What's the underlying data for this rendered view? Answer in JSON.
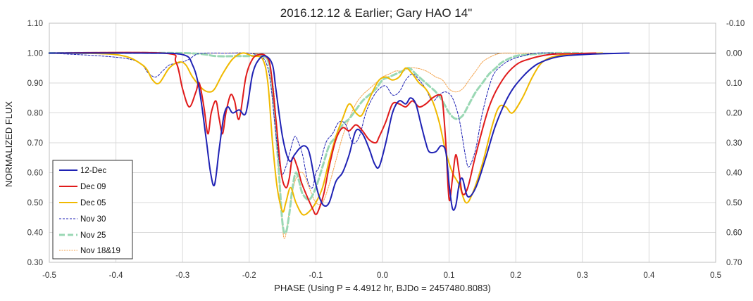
{
  "chart_data": {
    "type": "line",
    "title": "2016.12.12 & Earlier; Gary HAO 14\"",
    "xlabel": "PHASE (Using P = 4.4912 hr, BJDo = 2457480.8083)",
    "ylabel": "NORMALIZED FLUX",
    "xlim": [
      -0.5,
      0.5
    ],
    "ylim": [
      0.3,
      1.1
    ],
    "y2lim": [
      -0.1,
      0.7
    ],
    "y2_reversed": true,
    "grid": true,
    "legend_position": "bottom-left",
    "x_ticks": [
      "-0.5",
      "-0.4",
      "-0.3",
      "-0.2",
      "-0.1",
      "0.0",
      "0.1",
      "0.2",
      "0.3",
      "0.4",
      "0.5"
    ],
    "y_ticks": [
      "1.10",
      "1.00",
      "0.90",
      "0.80",
      "0.70",
      "0.60",
      "0.50",
      "0.40",
      "0.30"
    ],
    "y2_ticks": [
      "-0.10",
      "0.00",
      "0.10",
      "0.20",
      "0.30",
      "0.40",
      "0.50",
      "0.60",
      "0.70"
    ],
    "reference_line": 1.0,
    "series": [
      {
        "name": "12-Dec",
        "color": "#1f22b4",
        "style": "solid",
        "x": [
          -0.5,
          -0.36,
          -0.3,
          -0.285,
          -0.275,
          -0.265,
          -0.258,
          -0.252,
          -0.245,
          -0.238,
          -0.232,
          -0.225,
          -0.215,
          -0.205,
          -0.195,
          -0.185,
          -0.175,
          -0.165,
          -0.16,
          -0.15,
          -0.14,
          -0.132,
          -0.125,
          -0.118,
          -0.112,
          -0.108,
          -0.102,
          -0.095,
          -0.088,
          -0.08,
          -0.07,
          -0.06,
          -0.05,
          -0.04,
          -0.03,
          -0.02,
          -0.012,
          -0.005,
          0.005,
          0.015,
          0.025,
          0.035,
          0.042,
          0.05,
          0.058,
          0.065,
          0.07,
          0.08,
          0.088,
          0.095,
          0.1,
          0.105,
          0.11,
          0.115,
          0.12,
          0.128,
          0.14,
          0.155,
          0.17,
          0.19,
          0.21,
          0.23,
          0.25,
          0.27,
          0.3,
          0.33,
          0.37
        ],
        "y": [
          1.0,
          1.0,
          0.995,
          0.96,
          0.88,
          0.72,
          0.6,
          0.56,
          0.68,
          0.79,
          0.82,
          0.8,
          0.81,
          0.8,
          0.93,
          0.98,
          0.99,
          0.96,
          0.88,
          0.72,
          0.64,
          0.66,
          0.68,
          0.69,
          0.68,
          0.65,
          0.58,
          0.52,
          0.49,
          0.5,
          0.57,
          0.6,
          0.66,
          0.74,
          0.73,
          0.68,
          0.63,
          0.62,
          0.7,
          0.8,
          0.84,
          0.83,
          0.85,
          0.83,
          0.76,
          0.7,
          0.67,
          0.67,
          0.69,
          0.67,
          0.56,
          0.48,
          0.49,
          0.56,
          0.58,
          0.52,
          0.55,
          0.65,
          0.76,
          0.86,
          0.92,
          0.96,
          0.98,
          0.99,
          0.995,
          0.998,
          1.0
        ]
      },
      {
        "name": "Dec 09",
        "color": "#e01b1b",
        "style": "solid",
        "x": [
          -0.5,
          -0.33,
          -0.31,
          -0.3,
          -0.29,
          -0.28,
          -0.275,
          -0.268,
          -0.262,
          -0.257,
          -0.25,
          -0.245,
          -0.24,
          -0.235,
          -0.228,
          -0.222,
          -0.215,
          -0.205,
          -0.195,
          -0.185,
          -0.175,
          -0.168,
          -0.16,
          -0.152,
          -0.145,
          -0.14,
          -0.135,
          -0.128,
          -0.122,
          -0.115,
          -0.105,
          -0.1,
          -0.095,
          -0.088,
          -0.08,
          -0.07,
          -0.06,
          -0.05,
          -0.04,
          -0.03,
          -0.02,
          -0.01,
          -0.005,
          0.005,
          0.015,
          0.025,
          0.035,
          0.045,
          0.055,
          0.065,
          0.075,
          0.085,
          0.09,
          0.095,
          0.1,
          0.105,
          0.11,
          0.115,
          0.12,
          0.128,
          0.14,
          0.16,
          0.18,
          0.2,
          0.22,
          0.25,
          0.28,
          0.32
        ],
        "y": [
          1.0,
          1.0,
          0.97,
          0.88,
          0.82,
          0.87,
          0.9,
          0.82,
          0.73,
          0.8,
          0.84,
          0.78,
          0.73,
          0.8,
          0.86,
          0.84,
          0.78,
          0.92,
          0.98,
          0.995,
          0.99,
          0.95,
          0.78,
          0.6,
          0.55,
          0.58,
          0.65,
          0.62,
          0.57,
          0.53,
          0.48,
          0.46,
          0.48,
          0.53,
          0.62,
          0.71,
          0.75,
          0.74,
          0.76,
          0.74,
          0.71,
          0.7,
          0.72,
          0.77,
          0.83,
          0.83,
          0.82,
          0.84,
          0.82,
          0.83,
          0.85,
          0.86,
          0.84,
          0.7,
          0.51,
          0.58,
          0.66,
          0.6,
          0.53,
          0.55,
          0.66,
          0.82,
          0.91,
          0.96,
          0.98,
          0.995,
          0.998,
          1.0
        ]
      },
      {
        "name": "Dec 05",
        "color": "#f0b900",
        "style": "solid",
        "x": [
          -0.5,
          -0.4,
          -0.36,
          -0.345,
          -0.335,
          -0.32,
          -0.305,
          -0.295,
          -0.285,
          -0.27,
          -0.26,
          -0.252,
          -0.24,
          -0.225,
          -0.21,
          -0.195,
          -0.18,
          -0.172,
          -0.165,
          -0.158,
          -0.15,
          -0.145,
          -0.138,
          -0.13,
          -0.12,
          -0.11,
          -0.1,
          -0.09,
          -0.08,
          -0.07,
          -0.06,
          -0.05,
          -0.04,
          -0.032,
          -0.025,
          -0.015,
          -0.005,
          0.005,
          0.015,
          0.025,
          0.035,
          0.045,
          0.055,
          0.065,
          0.075,
          0.085,
          0.095,
          0.105,
          0.115,
          0.125,
          0.135,
          0.15,
          0.165,
          0.175,
          0.185,
          0.195,
          0.21,
          0.225,
          0.24,
          0.26,
          0.29,
          0.33
        ],
        "y": [
          1.0,
          0.995,
          0.96,
          0.91,
          0.9,
          0.95,
          0.97,
          0.96,
          0.92,
          0.88,
          0.87,
          0.88,
          0.93,
          0.98,
          1.0,
          0.99,
          0.98,
          0.9,
          0.7,
          0.55,
          0.47,
          0.5,
          0.55,
          0.5,
          0.46,
          0.47,
          0.5,
          0.55,
          0.64,
          0.72,
          0.78,
          0.83,
          0.8,
          0.79,
          0.82,
          0.87,
          0.91,
          0.92,
          0.91,
          0.92,
          0.95,
          0.93,
          0.9,
          0.88,
          0.84,
          0.77,
          0.67,
          0.6,
          0.56,
          0.5,
          0.53,
          0.63,
          0.76,
          0.82,
          0.82,
          0.8,
          0.85,
          0.92,
          0.97,
          0.99,
          0.998,
          1.0
        ]
      },
      {
        "name": "Nov 30",
        "color": "#1f22b4",
        "style": "dashed",
        "x": [
          -0.5,
          -0.38,
          -0.35,
          -0.34,
          -0.33,
          -0.32,
          -0.31,
          -0.3,
          -0.29,
          -0.28,
          -0.27,
          -0.23,
          -0.2,
          -0.185,
          -0.175,
          -0.168,
          -0.16,
          -0.152,
          -0.145,
          -0.14,
          -0.132,
          -0.126,
          -0.12,
          -0.112,
          -0.105,
          -0.1,
          -0.095,
          -0.085,
          -0.075,
          -0.065,
          -0.055,
          -0.045,
          -0.035,
          -0.025,
          -0.015,
          -0.005,
          0.005,
          0.015,
          0.025,
          0.035,
          0.045,
          0.055,
          0.065,
          0.075,
          0.085,
          0.095,
          0.105,
          0.115,
          0.125,
          0.13,
          0.14,
          0.15,
          0.165,
          0.18,
          0.195,
          0.21,
          0.23,
          0.26
        ],
        "y": [
          1.0,
          0.98,
          0.93,
          0.92,
          0.94,
          0.96,
          0.965,
          0.97,
          0.98,
          0.995,
          1.0,
          1.0,
          1.0,
          0.99,
          0.97,
          0.9,
          0.73,
          0.6,
          0.62,
          0.66,
          0.72,
          0.7,
          0.66,
          0.57,
          0.55,
          0.6,
          0.62,
          0.7,
          0.73,
          0.77,
          0.76,
          0.7,
          0.72,
          0.8,
          0.85,
          0.88,
          0.89,
          0.86,
          0.87,
          0.91,
          0.93,
          0.91,
          0.88,
          0.84,
          0.86,
          0.87,
          0.85,
          0.78,
          0.65,
          0.62,
          0.68,
          0.8,
          0.92,
          0.96,
          0.98,
          0.99,
          1.0,
          1.0
        ]
      },
      {
        "name": "Nov 25",
        "color": "#9ad8b4",
        "style": "dashed-thick",
        "x": [
          -0.5,
          -0.3,
          -0.25,
          -0.22,
          -0.2,
          -0.18,
          -0.17,
          -0.163,
          -0.156,
          -0.15,
          -0.145,
          -0.14,
          -0.135,
          -0.13,
          -0.125,
          -0.12,
          -0.11,
          -0.1,
          -0.09,
          -0.08,
          -0.07,
          -0.06,
          -0.05,
          -0.04,
          -0.03,
          -0.02,
          -0.01,
          0.0,
          0.01,
          0.02,
          0.03,
          0.04,
          0.05,
          0.06,
          0.07,
          0.08,
          0.09,
          0.1,
          0.11,
          0.12,
          0.13,
          0.14,
          0.15,
          0.16,
          0.17,
          0.18,
          0.2,
          0.22,
          0.25,
          0.3
        ],
        "y": [
          1.0,
          1.0,
          0.99,
          0.99,
          0.99,
          0.99,
          0.96,
          0.82,
          0.62,
          0.43,
          0.4,
          0.46,
          0.55,
          0.6,
          0.57,
          0.53,
          0.51,
          0.55,
          0.62,
          0.69,
          0.72,
          0.76,
          0.78,
          0.81,
          0.84,
          0.86,
          0.88,
          0.91,
          0.92,
          0.93,
          0.94,
          0.95,
          0.93,
          0.91,
          0.89,
          0.87,
          0.84,
          0.8,
          0.78,
          0.79,
          0.83,
          0.87,
          0.9,
          0.93,
          0.95,
          0.97,
          0.99,
          0.995,
          1.0,
          1.0
        ]
      },
      {
        "name": "Nov 18&19",
        "color": "#f4a24a",
        "style": "dotted",
        "x": [
          -0.5,
          -0.3,
          -0.25,
          -0.2,
          -0.18,
          -0.17,
          -0.162,
          -0.156,
          -0.15,
          -0.147,
          -0.143,
          -0.138,
          -0.13,
          -0.12,
          -0.11,
          -0.1,
          -0.09,
          -0.08,
          -0.07,
          -0.06,
          -0.05,
          -0.04,
          -0.03,
          -0.02,
          -0.01,
          0.0,
          0.01,
          0.02,
          0.03,
          0.04,
          0.05,
          0.06,
          0.07,
          0.08,
          0.09,
          0.1,
          0.11,
          0.12,
          0.13,
          0.14,
          0.15,
          0.16,
          0.17,
          0.18,
          0.2,
          0.22,
          0.25,
          0.3
        ],
        "y": [
          1.0,
          1.0,
          1.0,
          1.0,
          0.99,
          0.96,
          0.85,
          0.62,
          0.42,
          0.38,
          0.42,
          0.5,
          0.58,
          0.6,
          0.55,
          0.5,
          0.5,
          0.56,
          0.64,
          0.72,
          0.78,
          0.83,
          0.86,
          0.88,
          0.9,
          0.92,
          0.93,
          0.94,
          0.94,
          0.95,
          0.95,
          0.945,
          0.935,
          0.92,
          0.91,
          0.88,
          0.87,
          0.88,
          0.91,
          0.94,
          0.97,
          0.985,
          0.995,
          1.0,
          1.0,
          1.0,
          1.0,
          1.0
        ]
      }
    ]
  }
}
